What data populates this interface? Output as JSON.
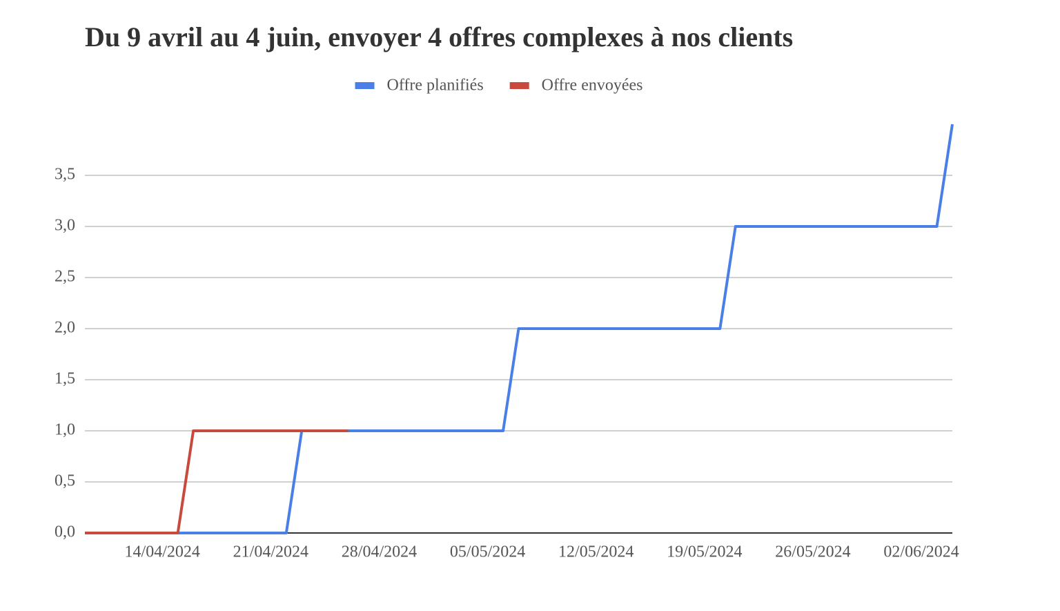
{
  "chart_data": {
    "type": "line",
    "title": "Du 9 avril au 4 juin, envoyer 4 offres complexes à nos clients",
    "x": [
      "2024-04-09",
      "2024-04-15",
      "2024-04-16",
      "2024-04-22",
      "2024-04-23",
      "2024-04-26",
      "2024-05-06",
      "2024-05-07",
      "2024-05-20",
      "2024-05-21",
      "2024-06-03",
      "2024-06-04"
    ],
    "series": [
      {
        "name": "Offre planifiés",
        "color": "#4a7fe8",
        "values": [
          0,
          0,
          0,
          0,
          1,
          1,
          1,
          2,
          2,
          3,
          3,
          4
        ]
      },
      {
        "name": "Offre envoyées",
        "color": "#c94a3c",
        "values": [
          0,
          0,
          1,
          1,
          1,
          1,
          null,
          null,
          null,
          null,
          null,
          null
        ]
      }
    ],
    "xlim": [
      "2024-04-09",
      "2024-06-04"
    ],
    "xticks": [
      {
        "value": "2024-04-14",
        "label": "14/04/2024"
      },
      {
        "value": "2024-04-21",
        "label": "21/04/2024"
      },
      {
        "value": "2024-04-28",
        "label": "28/04/2024"
      },
      {
        "value": "2024-05-05",
        "label": "05/05/2024"
      },
      {
        "value": "2024-05-12",
        "label": "12/05/2024"
      },
      {
        "value": "2024-05-19",
        "label": "19/05/2024"
      },
      {
        "value": "2024-05-26",
        "label": "26/05/2024"
      },
      {
        "value": "2024-06-02",
        "label": "02/06/2024"
      }
    ],
    "ylim": [
      0,
      4
    ],
    "yticks": [
      {
        "value": 0,
        "label": "0,0"
      },
      {
        "value": 0.5,
        "label": "0,5"
      },
      {
        "value": 1,
        "label": "1,0"
      },
      {
        "value": 1.5,
        "label": "1,5"
      },
      {
        "value": 2,
        "label": "2,0"
      },
      {
        "value": 2.5,
        "label": "2,5"
      },
      {
        "value": 3,
        "label": "3,0"
      },
      {
        "value": 3.5,
        "label": "3,5"
      }
    ],
    "grid": true,
    "legend": "top"
  }
}
